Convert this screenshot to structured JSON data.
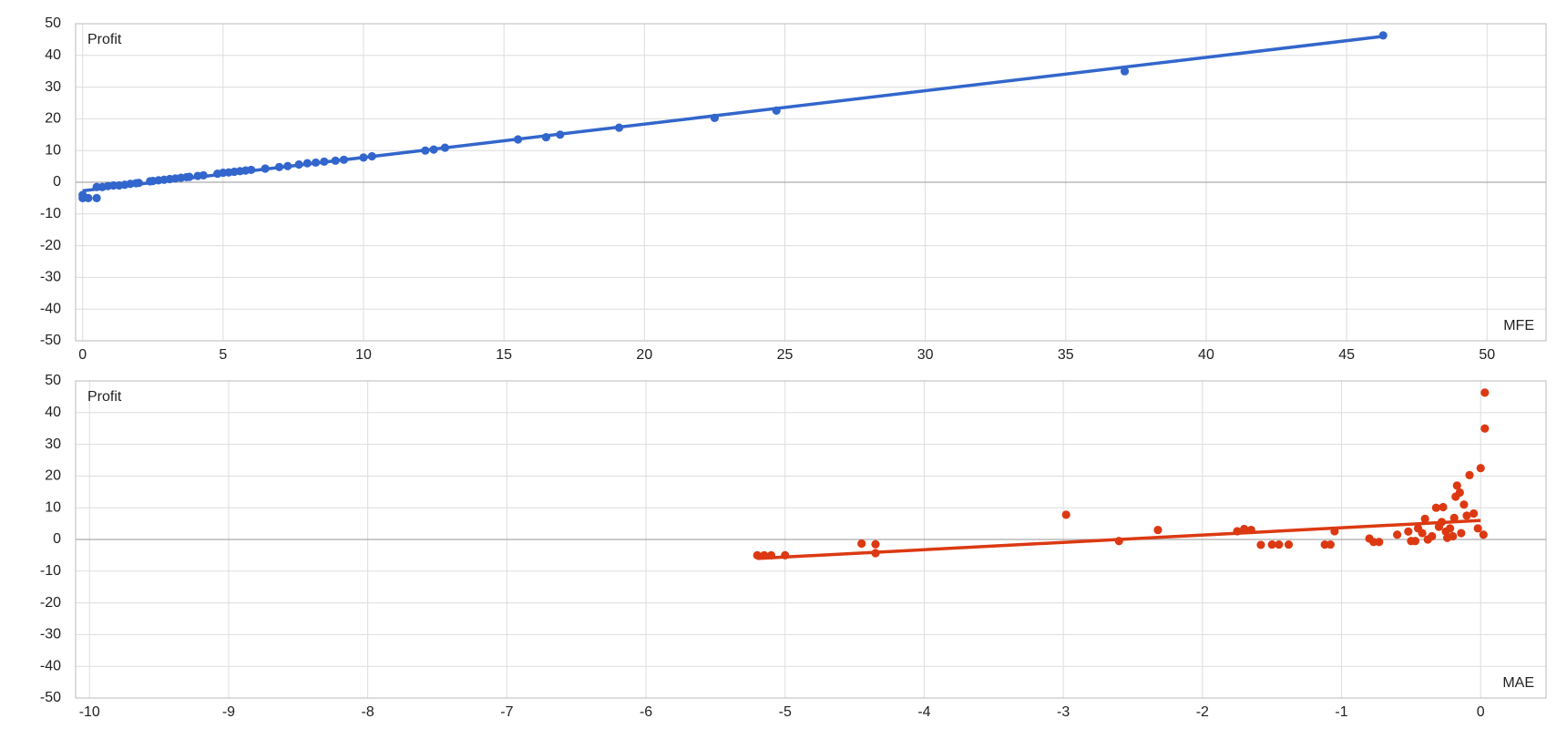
{
  "chart_data": [
    {
      "type": "scatter",
      "y_label": "Profit",
      "x_label": "MFE",
      "color": "#3366cc",
      "x": [
        0,
        0,
        0.2,
        0.5,
        0.5,
        0.7,
        0.9,
        1.1,
        1.3,
        1.5,
        1.7,
        1.9,
        2.0,
        2.4,
        2.5,
        2.7,
        2.9,
        3.1,
        3.3,
        3.5,
        3.7,
        3.8,
        4.1,
        4.3,
        4.8,
        5.0,
        5.2,
        5.4,
        5.6,
        5.8,
        6.0,
        6.5,
        7.0,
        7.3,
        7.7,
        8.0,
        8.3,
        8.6,
        9.0,
        9.3,
        10.0,
        10.3,
        12.2,
        12.5,
        12.9,
        15.5,
        16.5,
        17.0,
        19.1,
        22.5,
        24.7,
        37.1,
        46.3
      ],
      "values": [
        -5,
        -4,
        -5,
        -5,
        -1.5,
        -1.5,
        -1.2,
        -1,
        -1,
        -0.8,
        -0.5,
        -0.3,
        -0.2,
        0.3,
        0.4,
        0.6,
        0.8,
        1,
        1.2,
        1.4,
        1.6,
        1.7,
        2,
        2.2,
        2.7,
        3,
        3.1,
        3.3,
        3.5,
        3.7,
        3.9,
        4.3,
        4.8,
        5.1,
        5.6,
        6,
        6.2,
        6.5,
        6.8,
        7.1,
        7.8,
        8.2,
        10,
        10.3,
        10.9,
        13.5,
        14.2,
        15,
        17.2,
        20.3,
        22.6,
        35,
        46.3
      ],
      "trendline": {
        "x": [
          0,
          46.3
        ],
        "y": [
          -2.7,
          46
        ]
      },
      "xlim": [
        -0.25,
        52.1
      ],
      "ylim": [
        -50,
        50
      ],
      "xticks": [
        0,
        5,
        10,
        15,
        20,
        25,
        30,
        35,
        40,
        45,
        50
      ],
      "yticks": [
        -50,
        -40,
        -30,
        -20,
        -10,
        0,
        10,
        20,
        30,
        40,
        50
      ],
      "grid": true
    },
    {
      "type": "scatter",
      "y_label": "Profit",
      "x_label": "MAE",
      "color": "#dc3912",
      "x": [
        -5.2,
        -5.15,
        -5.1,
        -5.0,
        -4.45,
        -4.35,
        -4.35,
        -2.98,
        -2.6,
        -2.32,
        -1.75,
        -1.7,
        -1.65,
        -1.58,
        -1.5,
        -1.45,
        -1.38,
        -1.12,
        -1.08,
        -1.05,
        -0.8,
        -0.77,
        -0.73,
        -0.6,
        -0.52,
        -0.5,
        -0.47,
        -0.45,
        -0.42,
        -0.4,
        -0.38,
        -0.35,
        -0.32,
        -0.3,
        -0.28,
        -0.27,
        -0.25,
        -0.24,
        -0.22,
        -0.2,
        -0.19,
        -0.18,
        -0.17,
        -0.15,
        -0.14,
        -0.12,
        -0.1,
        -0.08,
        -0.05,
        -0.02,
        0.0,
        0.02,
        0.03,
        0.03
      ],
      "values": [
        -5,
        -5,
        -5,
        -5,
        -1.3,
        -1.5,
        -4.3,
        7.8,
        -0.5,
        3,
        2.6,
        3.3,
        3,
        -1.7,
        -1.6,
        -1.6,
        -1.6,
        -1.6,
        -1.6,
        2.6,
        0.3,
        -0.8,
        -0.8,
        1.5,
        2.5,
        -0.5,
        -0.5,
        3.5,
        2,
        6.5,
        0,
        1,
        10,
        4,
        5.5,
        10.2,
        2.5,
        0.5,
        3.5,
        1,
        6.8,
        13.5,
        17,
        14.8,
        2,
        11,
        7.5,
        20.3,
        8.2,
        3.5,
        22.5,
        1.5,
        35,
        46.3
      ],
      "trendline": {
        "x": [
          -5.2,
          0
        ],
        "y": [
          -6,
          6
        ]
      },
      "xlim": [
        -10.1,
        0.47
      ],
      "ylim": [
        -50,
        50
      ],
      "xticks": [
        -10,
        -9,
        -8,
        -7,
        -6,
        -5,
        -4,
        -3,
        -2,
        -1,
        0
      ],
      "yticks": [
        -50,
        -40,
        -30,
        -20,
        -10,
        0,
        10,
        20,
        30,
        40,
        50
      ],
      "grid": true
    }
  ]
}
